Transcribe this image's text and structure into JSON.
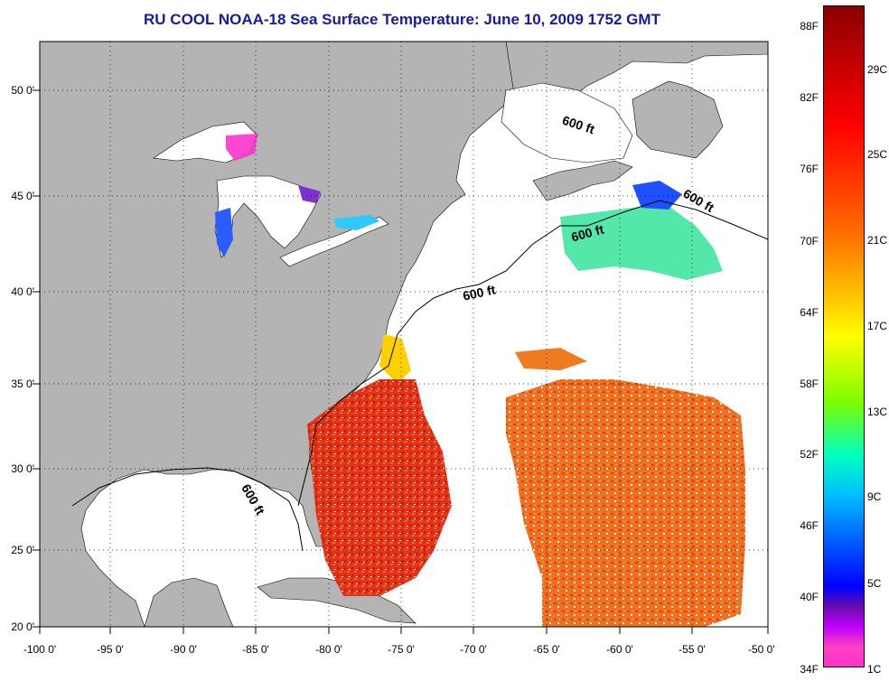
{
  "title": "RU COOL  NOAA-18  Sea Surface Temperature:  June 10, 2009 1752 GMT",
  "map": {
    "lat_labels": [
      "50 0'",
      "45 0'",
      "40 0'",
      "35 0'",
      "30 0'",
      "25 0'",
      "20 0'"
    ],
    "lon_labels": [
      "-100 0'",
      "-95 0'",
      "-90 0'",
      "-85 0'",
      "-80 0'",
      "-75 0'",
      "-70 0'",
      "-65 0'",
      "-60 0'",
      "-55 0'",
      "-50 0'"
    ],
    "contour_labels": [
      "600 ft",
      "600 ft",
      "600 ft",
      "600 ft",
      "600 ft"
    ],
    "colors": {
      "land": "#b4b4b4",
      "water_nodata": "#ffffff",
      "grid": "#000000"
    }
  },
  "colorbar": {
    "fahrenheit": [
      "88F",
      "82F",
      "76F",
      "70F",
      "64F",
      "58F",
      "52F",
      "46F",
      "40F",
      "34F"
    ],
    "celsius": [
      "29C",
      "25C",
      "21C",
      "17C",
      "13C",
      "9C",
      "5C",
      "1C"
    ]
  }
}
